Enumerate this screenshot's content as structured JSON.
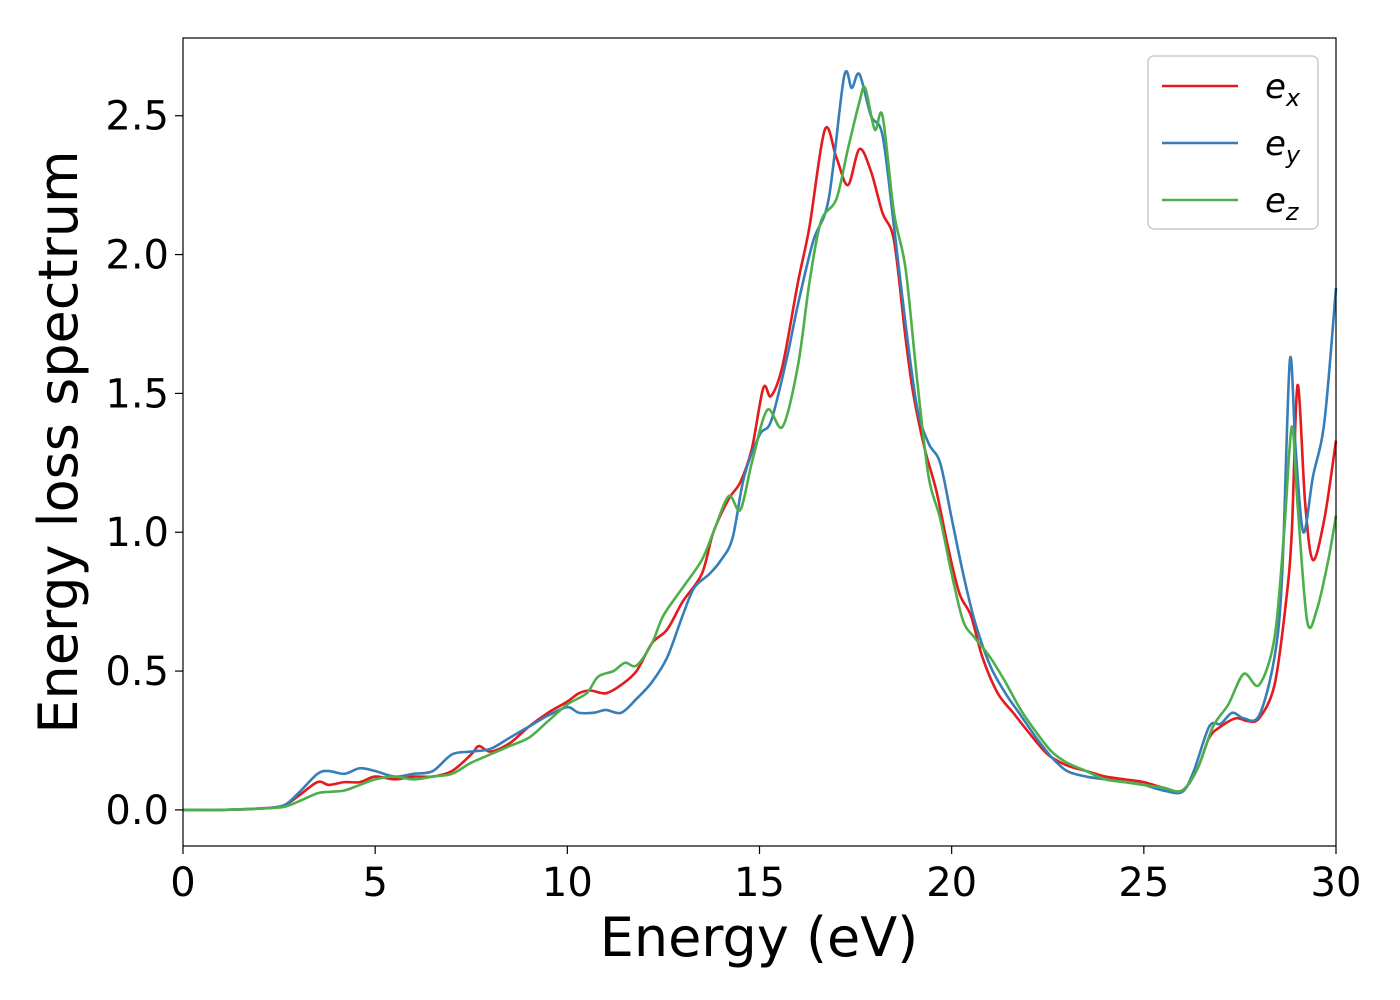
{
  "chart_data": {
    "type": "line",
    "title": "",
    "xlabel": "Energy (eV)",
    "ylabel": "Energy loss spectrum",
    "xlim": [
      0,
      30
    ],
    "ylim": [
      -0.13,
      2.78
    ],
    "xticks": [
      0,
      5,
      10,
      15,
      20,
      25,
      30
    ],
    "xtick_labels": [
      "0",
      "5",
      "10",
      "15",
      "20",
      "25",
      "30"
    ],
    "yticks": [
      0.0,
      0.5,
      1.0,
      1.5,
      2.0,
      2.5
    ],
    "ytick_labels": [
      "0.0",
      "0.5",
      "1.0",
      "1.5",
      "2.0",
      "2.5"
    ],
    "grid": false,
    "legend": "top-right",
    "series": [
      {
        "name": "e",
        "subscript": "x",
        "color": "#e41a1c",
        "points": [
          [
            0,
            0
          ],
          [
            1,
            0
          ],
          [
            2,
            0.005
          ],
          [
            2.6,
            0.015
          ],
          [
            3,
            0.05
          ],
          [
            3.5,
            0.1
          ],
          [
            3.8,
            0.09
          ],
          [
            4.2,
            0.1
          ],
          [
            4.6,
            0.1
          ],
          [
            5,
            0.12
          ],
          [
            5.5,
            0.11
          ],
          [
            6,
            0.12
          ],
          [
            6.5,
            0.12
          ],
          [
            7,
            0.14
          ],
          [
            7.5,
            0.2
          ],
          [
            7.7,
            0.23
          ],
          [
            8,
            0.21
          ],
          [
            8.5,
            0.24
          ],
          [
            9,
            0.3
          ],
          [
            9.5,
            0.35
          ],
          [
            10,
            0.39
          ],
          [
            10.3,
            0.42
          ],
          [
            10.6,
            0.43
          ],
          [
            11,
            0.42
          ],
          [
            11.4,
            0.45
          ],
          [
            11.8,
            0.5
          ],
          [
            12.2,
            0.6
          ],
          [
            12.6,
            0.65
          ],
          [
            13,
            0.75
          ],
          [
            13.5,
            0.85
          ],
          [
            13.8,
            1.0
          ],
          [
            14.2,
            1.12
          ],
          [
            14.5,
            1.18
          ],
          [
            14.8,
            1.3
          ],
          [
            15.1,
            1.52
          ],
          [
            15.3,
            1.49
          ],
          [
            15.6,
            1.6
          ],
          [
            16,
            1.9
          ],
          [
            16.3,
            2.1
          ],
          [
            16.7,
            2.45
          ],
          [
            17,
            2.35
          ],
          [
            17.3,
            2.25
          ],
          [
            17.6,
            2.38
          ],
          [
            17.9,
            2.3
          ],
          [
            18.2,
            2.15
          ],
          [
            18.5,
            2.05
          ],
          [
            18.8,
            1.7
          ],
          [
            19,
            1.5
          ],
          [
            19.3,
            1.3
          ],
          [
            19.6,
            1.15
          ],
          [
            19.9,
            0.95
          ],
          [
            20.2,
            0.78
          ],
          [
            20.5,
            0.7
          ],
          [
            20.8,
            0.55
          ],
          [
            21.2,
            0.42
          ],
          [
            21.6,
            0.35
          ],
          [
            22,
            0.28
          ],
          [
            22.5,
            0.2
          ],
          [
            23,
            0.16
          ],
          [
            23.5,
            0.14
          ],
          [
            24,
            0.12
          ],
          [
            24.5,
            0.11
          ],
          [
            25,
            0.1
          ],
          [
            25.5,
            0.08
          ],
          [
            26,
            0.07
          ],
          [
            26.4,
            0.15
          ],
          [
            26.7,
            0.26
          ],
          [
            27,
            0.3
          ],
          [
            27.4,
            0.33
          ],
          [
            27.7,
            0.32
          ],
          [
            28,
            0.33
          ],
          [
            28.4,
            0.45
          ],
          [
            28.7,
            0.75
          ],
          [
            28.85,
            1.0
          ],
          [
            29,
            1.53
          ],
          [
            29.2,
            1.1
          ],
          [
            29.4,
            0.9
          ],
          [
            29.7,
            1.05
          ],
          [
            30,
            1.33
          ]
        ]
      },
      {
        "name": "e",
        "subscript": "y",
        "color": "#377eb8",
        "points": [
          [
            0,
            0
          ],
          [
            1,
            0
          ],
          [
            2,
            0.005
          ],
          [
            2.6,
            0.015
          ],
          [
            3,
            0.06
          ],
          [
            3.5,
            0.13
          ],
          [
            3.8,
            0.14
          ],
          [
            4.2,
            0.13
          ],
          [
            4.6,
            0.15
          ],
          [
            5,
            0.14
          ],
          [
            5.5,
            0.12
          ],
          [
            6,
            0.13
          ],
          [
            6.5,
            0.14
          ],
          [
            7,
            0.2
          ],
          [
            7.5,
            0.21
          ],
          [
            8,
            0.22
          ],
          [
            8.5,
            0.26
          ],
          [
            9,
            0.3
          ],
          [
            9.5,
            0.34
          ],
          [
            10,
            0.37
          ],
          [
            10.3,
            0.35
          ],
          [
            10.7,
            0.35
          ],
          [
            11,
            0.36
          ],
          [
            11.4,
            0.35
          ],
          [
            11.8,
            0.4
          ],
          [
            12.2,
            0.46
          ],
          [
            12.6,
            0.55
          ],
          [
            13,
            0.7
          ],
          [
            13.3,
            0.8
          ],
          [
            13.7,
            0.85
          ],
          [
            14,
            0.9
          ],
          [
            14.3,
            0.98
          ],
          [
            14.6,
            1.2
          ],
          [
            15,
            1.35
          ],
          [
            15.3,
            1.4
          ],
          [
            15.7,
            1.62
          ],
          [
            16,
            1.82
          ],
          [
            16.4,
            2.05
          ],
          [
            16.8,
            2.2
          ],
          [
            17.2,
            2.64
          ],
          [
            17.4,
            2.6
          ],
          [
            17.6,
            2.65
          ],
          [
            17.9,
            2.5
          ],
          [
            18.2,
            2.43
          ],
          [
            18.5,
            2.1
          ],
          [
            18.8,
            1.75
          ],
          [
            19.1,
            1.45
          ],
          [
            19.4,
            1.32
          ],
          [
            19.7,
            1.25
          ],
          [
            20,
            1.05
          ],
          [
            20.3,
            0.85
          ],
          [
            20.6,
            0.68
          ],
          [
            21,
            0.52
          ],
          [
            21.4,
            0.42
          ],
          [
            21.8,
            0.34
          ],
          [
            22.2,
            0.26
          ],
          [
            22.6,
            0.19
          ],
          [
            23,
            0.14
          ],
          [
            23.5,
            0.12
          ],
          [
            24,
            0.11
          ],
          [
            24.5,
            0.1
          ],
          [
            25,
            0.09
          ],
          [
            25.5,
            0.07
          ],
          [
            26,
            0.065
          ],
          [
            26.3,
            0.14
          ],
          [
            26.7,
            0.3
          ],
          [
            27,
            0.31
          ],
          [
            27.3,
            0.35
          ],
          [
            27.6,
            0.33
          ],
          [
            28,
            0.34
          ],
          [
            28.4,
            0.55
          ],
          [
            28.6,
            0.85
          ],
          [
            28.8,
            1.62
          ],
          [
            28.95,
            1.3
          ],
          [
            29.15,
            1.0
          ],
          [
            29.4,
            1.2
          ],
          [
            29.7,
            1.4
          ],
          [
            30,
            1.88
          ]
        ]
      },
      {
        "name": "e",
        "subscript": "z",
        "color": "#4daf4a",
        "points": [
          [
            0,
            0
          ],
          [
            1,
            0
          ],
          [
            2,
            0.005
          ],
          [
            2.6,
            0.01
          ],
          [
            3,
            0.03
          ],
          [
            3.5,
            0.06
          ],
          [
            3.8,
            0.065
          ],
          [
            4.2,
            0.07
          ],
          [
            4.6,
            0.09
          ],
          [
            5,
            0.11
          ],
          [
            5.5,
            0.12
          ],
          [
            6,
            0.11
          ],
          [
            6.5,
            0.12
          ],
          [
            7,
            0.13
          ],
          [
            7.5,
            0.17
          ],
          [
            8,
            0.2
          ],
          [
            8.5,
            0.23
          ],
          [
            9,
            0.26
          ],
          [
            9.5,
            0.32
          ],
          [
            10,
            0.38
          ],
          [
            10.5,
            0.42
          ],
          [
            10.8,
            0.48
          ],
          [
            11.2,
            0.5
          ],
          [
            11.5,
            0.53
          ],
          [
            11.8,
            0.52
          ],
          [
            12.2,
            0.6
          ],
          [
            12.5,
            0.7
          ],
          [
            13,
            0.8
          ],
          [
            13.5,
            0.9
          ],
          [
            13.8,
            1.0
          ],
          [
            14.2,
            1.13
          ],
          [
            14.5,
            1.08
          ],
          [
            14.8,
            1.25
          ],
          [
            15.2,
            1.44
          ],
          [
            15.6,
            1.38
          ],
          [
            16,
            1.6
          ],
          [
            16.3,
            1.9
          ],
          [
            16.6,
            2.12
          ],
          [
            17,
            2.2
          ],
          [
            17.3,
            2.38
          ],
          [
            17.6,
            2.55
          ],
          [
            17.75,
            2.6
          ],
          [
            18,
            2.45
          ],
          [
            18.2,
            2.5
          ],
          [
            18.5,
            2.15
          ],
          [
            18.8,
            1.95
          ],
          [
            19.1,
            1.55
          ],
          [
            19.4,
            1.2
          ],
          [
            19.7,
            1.05
          ],
          [
            20,
            0.85
          ],
          [
            20.3,
            0.68
          ],
          [
            20.6,
            0.62
          ],
          [
            21,
            0.55
          ],
          [
            21.4,
            0.46
          ],
          [
            21.8,
            0.36
          ],
          [
            22.2,
            0.28
          ],
          [
            22.6,
            0.21
          ],
          [
            23,
            0.17
          ],
          [
            23.5,
            0.14
          ],
          [
            24,
            0.11
          ],
          [
            24.5,
            0.1
          ],
          [
            25,
            0.09
          ],
          [
            25.5,
            0.08
          ],
          [
            26,
            0.07
          ],
          [
            26.4,
            0.15
          ],
          [
            26.8,
            0.3
          ],
          [
            27.2,
            0.38
          ],
          [
            27.6,
            0.49
          ],
          [
            28,
            0.45
          ],
          [
            28.4,
            0.62
          ],
          [
            28.65,
            1.0
          ],
          [
            28.85,
            1.38
          ],
          [
            29,
            1.1
          ],
          [
            29.25,
            0.68
          ],
          [
            29.5,
            0.72
          ],
          [
            29.8,
            0.9
          ],
          [
            30,
            1.06
          ]
        ]
      }
    ]
  }
}
